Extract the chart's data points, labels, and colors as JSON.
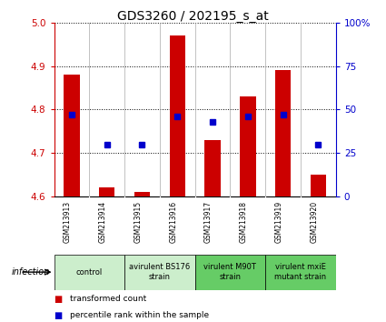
{
  "title": "GDS3260 / 202195_s_at",
  "samples": [
    "GSM213913",
    "GSM213914",
    "GSM213915",
    "GSM213916",
    "GSM213917",
    "GSM213918",
    "GSM213919",
    "GSM213920"
  ],
  "transformed_counts": [
    4.88,
    4.62,
    4.61,
    4.97,
    4.73,
    4.83,
    4.89,
    4.65
  ],
  "percentile_ranks": [
    47,
    30,
    30,
    46,
    43,
    46,
    47,
    30
  ],
  "ylim_left": [
    4.6,
    5.0
  ],
  "ylim_right": [
    0,
    100
  ],
  "yticks_left": [
    4.6,
    4.7,
    4.8,
    4.9,
    5.0
  ],
  "yticks_right": [
    0,
    25,
    50,
    75,
    100
  ],
  "yticklabels_right": [
    "0",
    "25",
    "50",
    "75",
    "100%"
  ],
  "bar_color": "#cc0000",
  "marker_color": "#0000cc",
  "bar_bottom": 4.6,
  "left_axis_color": "#cc0000",
  "right_axis_color": "#0000cc",
  "group_configs": [
    {
      "start": 0,
      "end": 1,
      "label": "control",
      "color": "#cceecc"
    },
    {
      "start": 2,
      "end": 3,
      "label": "avirulent BS176\nstrain",
      "color": "#cceecc"
    },
    {
      "start": 4,
      "end": 5,
      "label": "virulent M90T\nstrain",
      "color": "#66cc66"
    },
    {
      "start": 6,
      "end": 7,
      "label": "virulent mxiE\nmutant strain",
      "color": "#66cc66"
    }
  ],
  "infection_label": "infection",
  "legend_label_red": "transformed count",
  "legend_label_blue": "percentile rank within the sample",
  "sample_label_color": "#d3d3d3",
  "fig_width": 4.25,
  "fig_height": 3.54,
  "dpi": 100
}
